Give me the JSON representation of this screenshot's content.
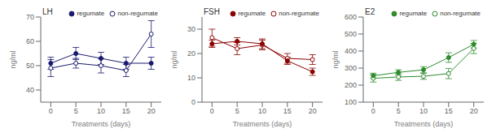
{
  "chart_data": [
    {
      "type": "line",
      "title": "LH",
      "x_label": "Treatments (days)",
      "y_label": "ng/ml",
      "x": [
        0,
        5,
        10,
        15,
        20
      ],
      "xlim": [
        -2,
        22
      ],
      "xticks": [
        0,
        5,
        10,
        15,
        20
      ],
      "ylim": [
        35,
        70
      ],
      "yticks": [
        40,
        50,
        60,
        70
      ],
      "legend": "upper right",
      "series": [
        {
          "name": "regumate",
          "color": "#1a1a6e",
          "marker": "circle",
          "line_style": "solid",
          "values": [
            51,
            55,
            53,
            51,
            51
          ],
          "errors": [
            2.5,
            2.5,
            2.5,
            2.5,
            2.5
          ]
        },
        {
          "name": "non-regumate",
          "color": "#1a1a6e",
          "marker": "open_circle",
          "line_style": "solid",
          "values": [
            49,
            51,
            50,
            48,
            63
          ],
          "errors": [
            3.5,
            2.0,
            3.0,
            2.5,
            5.5
          ]
        }
      ]
    },
    {
      "type": "line",
      "title": "FSH",
      "x_label": "Treatments (days)",
      "y_label": "ng/ml",
      "x": [
        0,
        5,
        10,
        15,
        20
      ],
      "xlim": [
        -2,
        22
      ],
      "xticks": [
        0,
        5,
        10,
        15,
        20
      ],
      "ylim": [
        0,
        35
      ],
      "yticks": [
        0,
        10,
        20,
        30
      ],
      "legend": "upper right",
      "series": [
        {
          "name": "regumate",
          "color": "#8b0000",
          "marker": "circle",
          "line_style": "solid",
          "values": [
            24,
            25,
            24,
            17,
            12.5
          ],
          "errors": [
            1.5,
            1.5,
            2.0,
            1.5,
            1.5
          ]
        },
        {
          "name": "non-regumate",
          "color": "#8b0000",
          "marker": "open_circle",
          "line_style": "solid",
          "values": [
            26.5,
            22,
            23.5,
            18,
            17.5
          ],
          "errors": [
            3.5,
            2.5,
            2.0,
            2.0,
            2.0
          ]
        }
      ]
    },
    {
      "type": "line",
      "title": "E2",
      "x_label": "Treatments (days)",
      "y_label": "ng/ml",
      "x": [
        0,
        5,
        10,
        15,
        20
      ],
      "xlim": [
        -2,
        22
      ],
      "xticks": [
        0,
        5,
        10,
        15,
        20
      ],
      "ylim": [
        100,
        600
      ],
      "yticks": [
        100,
        200,
        300,
        400,
        500,
        600
      ],
      "legend": "upper right",
      "series": [
        {
          "name": "regumate",
          "color": "#2e8b2e",
          "marker": "circle",
          "line_style": "solid",
          "values": [
            255,
            275,
            290,
            362,
            440
          ],
          "errors": [
            15,
            15,
            18,
            28,
            22
          ]
        },
        {
          "name": "non-regumate",
          "color": "#2e8b2e",
          "marker": "open_circle",
          "line_style": "solid",
          "values": [
            240,
            248,
            252,
            268,
            415
          ],
          "errors": [
            22,
            20,
            18,
            30,
            30
          ]
        }
      ]
    }
  ]
}
